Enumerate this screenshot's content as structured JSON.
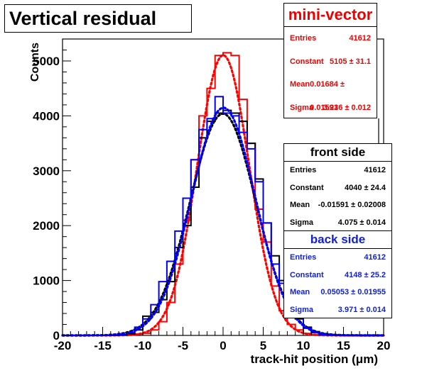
{
  "title": "Vertical residual",
  "chart_data": {
    "type": "histogram",
    "xlabel": "track-hit position (μm)",
    "ylabel": "Counts",
    "xlim": [
      -20,
      20
    ],
    "ylim": [
      0,
      5400
    ],
    "xticks": [
      -20,
      -15,
      -10,
      -5,
      0,
      5,
      10,
      15,
      20
    ],
    "yticks": [
      0,
      1000,
      2000,
      3000,
      4000,
      5000
    ],
    "ytick_labels": [
      "0",
      "1000",
      "2000",
      "3000",
      "4000",
      "5000"
    ],
    "bin_edges": [
      -20,
      -19,
      -18,
      -17,
      -16,
      -15,
      -14,
      -13,
      -12,
      -11,
      -10,
      -9,
      -8,
      -7,
      -6,
      -5,
      -4,
      -3,
      -2,
      -1,
      0,
      1,
      2,
      3,
      4,
      5,
      6,
      7,
      8,
      9,
      10,
      11,
      12,
      13,
      14,
      15,
      16,
      17,
      18,
      19,
      20
    ],
    "series": [
      {
        "color": "#ff0000",
        "values": [
          0,
          0,
          0,
          0,
          0,
          0,
          0,
          2,
          8,
          25,
          40,
          100,
          250,
          600,
          1300,
          2100,
          3200,
          4000,
          4500,
          5100,
          5150,
          5100,
          4300,
          3500,
          2300,
          1700,
          900,
          450,
          200,
          100,
          35,
          12,
          4,
          0,
          0,
          0,
          0,
          0,
          0,
          0
        ],
        "fit": {
          "constant": 5105,
          "mean": 0.01684,
          "sigma": 3.236
        }
      },
      {
        "color": "#000000",
        "values": [
          0,
          0,
          0,
          0,
          0,
          0,
          0,
          10,
          30,
          100,
          350,
          420,
          650,
          980,
          1600,
          2000,
          2700,
          3600,
          3900,
          4050,
          4100,
          4050,
          3900,
          3500,
          2850,
          2050,
          1450,
          1000,
          550,
          300,
          150,
          70,
          20,
          8,
          2,
          0,
          0,
          0,
          0,
          0
        ],
        "fit": {
          "constant": 4040,
          "mean": -0.01591,
          "sigma": 4.075
        }
      },
      {
        "color": "#0000ff",
        "values": [
          0,
          0,
          0,
          0,
          0,
          0,
          5,
          15,
          50,
          150,
          300,
          560,
          980,
          1350,
          1900,
          2500,
          3200,
          3750,
          3950,
          4350,
          4050,
          4000,
          3700,
          3400,
          2800,
          2050,
          1300,
          950,
          560,
          350,
          130,
          50,
          15,
          5,
          0,
          0,
          0,
          0,
          0,
          0
        ],
        "fit": {
          "constant": 4148,
          "mean": 0.05053,
          "sigma": 3.971
        }
      }
    ]
  },
  "stats_boxes": {
    "mini_vector": {
      "title": "mini-vector",
      "rows": [
        {
          "label": "Entries",
          "value": "41612"
        },
        {
          "label": "Constant",
          "value": "5105 ± 31.1"
        },
        {
          "label": "Mean",
          "value": "0.01684 ± 0.01591"
        },
        {
          "label": "Sigma",
          "value": "3.236 ± 0.012"
        }
      ]
    },
    "front_side": {
      "title": "front side",
      "rows": [
        {
          "label": "Entries",
          "value": "41612"
        },
        {
          "label": "Constant",
          "value": "4040 ± 24.4"
        },
        {
          "label": "Mean",
          "value": "-0.01591 ± 0.02008"
        },
        {
          "label": "Sigma",
          "value": "4.075 ± 0.014"
        }
      ]
    },
    "back_side": {
      "title": "back side",
      "rows": [
        {
          "label": "Entries",
          "value": "41612"
        },
        {
          "label": "Constant",
          "value": "4148 ± 25.2"
        },
        {
          "label": "Mean",
          "value": "0.05053 ± 0.01955"
        },
        {
          "label": "Sigma",
          "value": "3.971 ± 0.014"
        }
      ]
    }
  }
}
